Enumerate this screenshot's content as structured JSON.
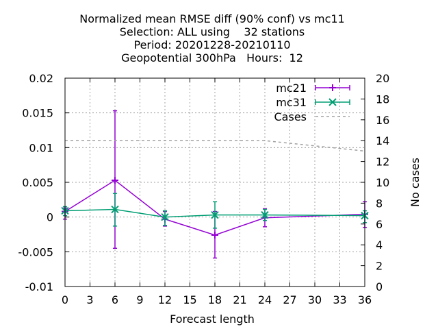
{
  "chart_data": {
    "type": "line",
    "title_lines": [
      "Normalized mean RMSE diff (90% conf) vs mc11",
      "Selection: ALL using    32 stations",
      "Period: 20201228-20210110",
      "Geopotential 300hPa   Hours:  12"
    ],
    "xlabel": "Forecast length",
    "ylabel": "",
    "y2label": "No cases",
    "xlim": [
      0,
      36
    ],
    "ylim": [
      -0.01,
      0.02
    ],
    "y2lim": [
      0,
      20
    ],
    "x_ticks": [
      "0",
      "3",
      "6",
      "9",
      "12",
      "15",
      "18",
      "21",
      "24",
      "27",
      "30",
      "33",
      "36"
    ],
    "y_ticks": [
      "-0.01",
      "-0.005",
      "0",
      "0.005",
      "0.01",
      "0.015",
      "0.02"
    ],
    "y2_ticks": [
      "0",
      "2",
      "4",
      "6",
      "8",
      "10",
      "12",
      "14",
      "16",
      "18",
      "20"
    ],
    "grid": true,
    "legend_position": "top-right",
    "series": [
      {
        "name": "mc21",
        "color": "#9400d3",
        "x": [
          0,
          6,
          12,
          18,
          24,
          36
        ],
        "y": [
          0.0008,
          0.0053,
          -0.0003,
          -0.0026,
          -0.0001,
          0.0004
        ],
        "err_low": [
          -0.0003,
          -0.0045,
          -0.0013,
          -0.0059,
          -0.0014,
          -0.0015
        ],
        "err_high": [
          0.0013,
          0.0153,
          0.0008,
          0.0008,
          0.0012,
          0.0022
        ],
        "marker": "plus"
      },
      {
        "name": "mc31",
        "color": "#009e73",
        "x": [
          0,
          6,
          12,
          18,
          24,
          36
        ],
        "y": [
          0.0009,
          0.0011,
          0.0,
          0.0003,
          0.0003,
          0.0002
        ],
        "err_low": [
          0.0002,
          -0.0013,
          -0.0012,
          -0.0016,
          -0.0005,
          -0.0008
        ],
        "err_high": [
          0.0015,
          0.0034,
          0.0009,
          0.0022,
          0.0011,
          0.0009
        ],
        "marker": "cross"
      },
      {
        "name": "Cases",
        "color": "#a0a0a0",
        "axis": "y2",
        "dashed": true,
        "x": [
          0,
          6,
          12,
          18,
          24,
          36
        ],
        "y": [
          14,
          14,
          14,
          14,
          14,
          13
        ]
      }
    ]
  }
}
